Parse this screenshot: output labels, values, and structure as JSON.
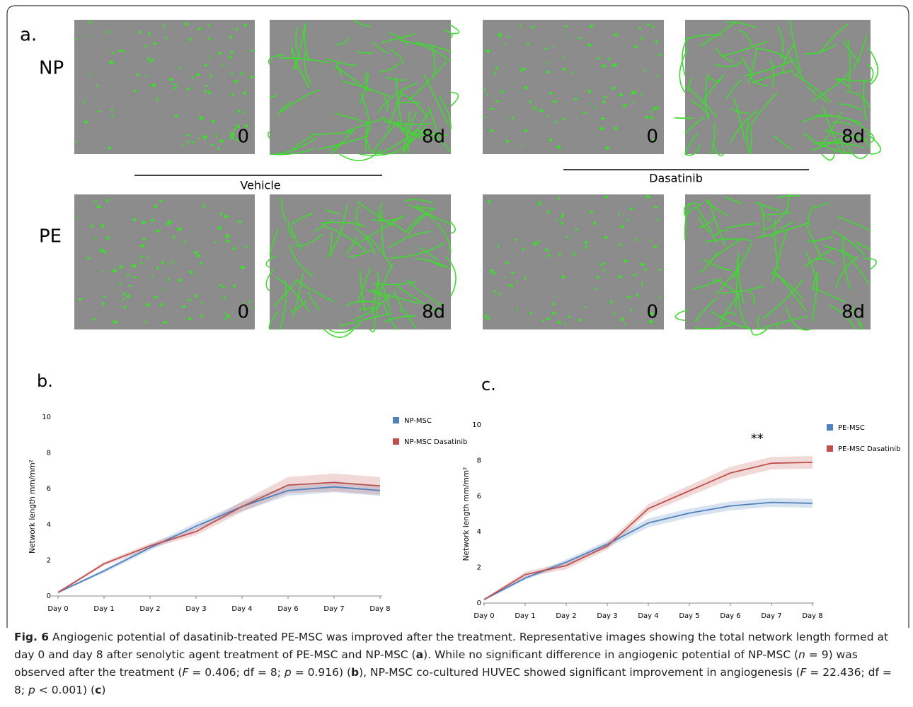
{
  "panel_a": {
    "label": "a.",
    "rows": [
      "NP",
      "PE"
    ],
    "groups": [
      "Vehicle",
      "Dasatinib"
    ],
    "times": [
      "0",
      "8d",
      "0",
      "8d"
    ]
  },
  "chart_data": [
    {
      "type": "line",
      "panel": "b.",
      "y_label": "Network length mm/mm²",
      "categories": [
        "Day 0",
        "Day 1",
        "Day 2",
        "Day 3",
        "Day 4",
        "Day 6",
        "Day 7",
        "Day 8"
      ],
      "series": [
        {
          "name": "NP-MSC",
          "color": "#4f81bd",
          "values": [
            0.2,
            1.4,
            2.7,
            3.9,
            5.0,
            5.9,
            6.1,
            5.9
          ],
          "errors": [
            0.05,
            0.1,
            0.15,
            0.2,
            0.25,
            0.3,
            0.3,
            0.3
          ]
        },
        {
          "name": "NP-MSC Dasatinib",
          "color": "#c0504d",
          "values": [
            0.2,
            1.8,
            2.8,
            3.6,
            5.0,
            6.2,
            6.35,
            6.15
          ],
          "errors": [
            0.05,
            0.1,
            0.15,
            0.2,
            0.3,
            0.45,
            0.5,
            0.5
          ]
        }
      ],
      "ylim": [
        0,
        10
      ],
      "yticks": [
        0,
        2,
        4,
        6,
        8,
        10
      ]
    },
    {
      "type": "line",
      "panel": "c.",
      "y_label": "Network length mm/mm²",
      "categories": [
        "Day 0",
        "Day 1",
        "Day 2",
        "Day 3",
        "Day 4",
        "Day 5",
        "Day 6",
        "Day 7",
        "Day 8"
      ],
      "series": [
        {
          "name": "PE-MSC",
          "color": "#4f81bd",
          "values": [
            0.2,
            1.4,
            2.3,
            3.3,
            4.5,
            5.05,
            5.45,
            5.65,
            5.6
          ],
          "errors": [
            0.05,
            0.1,
            0.15,
            0.2,
            0.25,
            0.25,
            0.25,
            0.25,
            0.25
          ]
        },
        {
          "name": "PE-MSC Dasatinib",
          "color": "#c0504d",
          "values": [
            0.2,
            1.6,
            2.1,
            3.2,
            5.3,
            6.3,
            7.3,
            7.85,
            7.9
          ],
          "errors": [
            0.05,
            0.15,
            0.2,
            0.2,
            0.25,
            0.3,
            0.35,
            0.35,
            0.35
          ]
        }
      ],
      "ylim": [
        0,
        10
      ],
      "yticks": [
        0,
        2,
        4,
        6,
        8,
        10
      ],
      "annotations": [
        {
          "text": "**"
        }
      ]
    }
  ],
  "caption": {
    "label": "Fig. 6",
    "parts": [
      " Angiogenic potential of dasatinib-treated PE-MSC was improved after the treatment. Representative images showing the total network length formed at day 0 and day 8 after senolytic agent treatment of PE-MSC and NP-MSC (",
      "a",
      "). While no significant difference in angiogenic potential of NP-MSC (",
      "n",
      " = 9) was observed after the treatment (",
      "F",
      " = 0.406; df = 8; ",
      "p",
      " = 0.916) (",
      "b",
      "), NP-MSC co-cultured HUVEC showed significant improvement in angiogenesis (",
      "F",
      " = 22.436; df = 8; ",
      "p",
      " < 0.001) (",
      "c",
      ")"
    ]
  }
}
